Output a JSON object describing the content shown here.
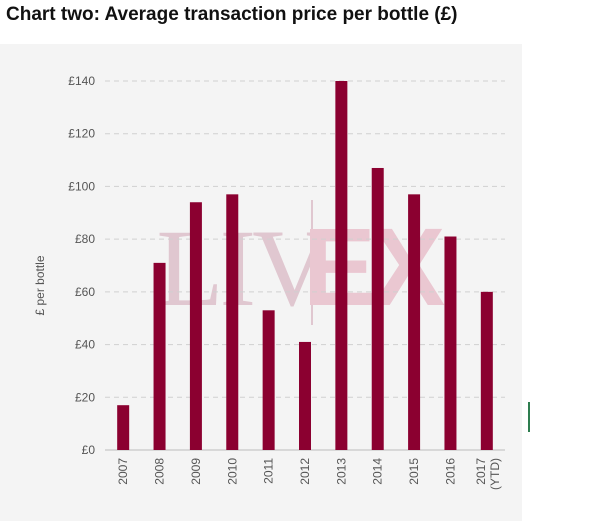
{
  "title": "Chart two: Average transaction price per bottle (£)",
  "watermark": {
    "left": "LIV",
    "right": "EX"
  },
  "chart_data": {
    "type": "bar",
    "categories": [
      "2007",
      "2008",
      "2009",
      "2010",
      "2011",
      "2012",
      "2013",
      "2014",
      "2015",
      "2016",
      "2017 (YTD)"
    ],
    "series": [
      {
        "values": [
          17,
          71,
          94,
          97,
          53,
          41,
          140,
          107,
          97,
          81,
          60
        ]
      }
    ],
    "ylabel": "£ per bottle",
    "xlabel": "",
    "ylim": [
      0,
      140
    ],
    "yticks": [
      0,
      20,
      40,
      60,
      80,
      100,
      120,
      140
    ],
    "ytick_labels": [
      "£0",
      "£20",
      "£40",
      "£60",
      "£80",
      "£100",
      "£120",
      "£140"
    ],
    "grid": true,
    "bar_color": "#8b0030",
    "grid_color": "#d0d0d0",
    "legend": "none"
  }
}
